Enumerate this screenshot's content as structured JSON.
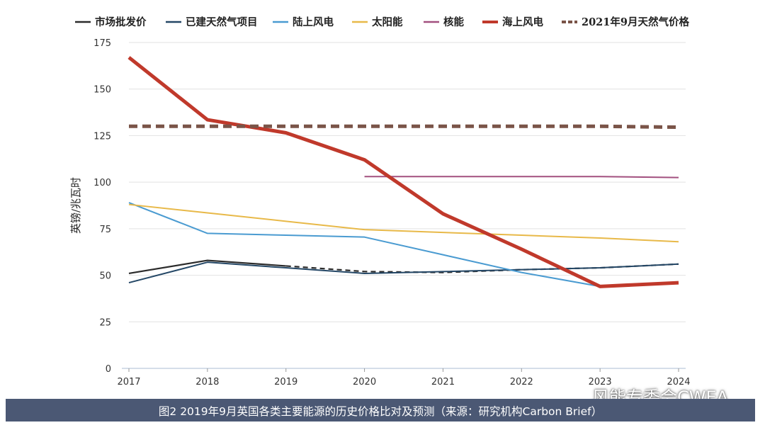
{
  "chart_data": {
    "type": "line",
    "ylabel": "英镑/兆瓦时",
    "ylim": [
      0,
      175
    ],
    "yticks": [
      0,
      25,
      50,
      75,
      100,
      125,
      150,
      175
    ],
    "x": [
      2017,
      2018,
      2019,
      2020,
      2021,
      2022,
      2023,
      2024
    ],
    "grid": "horizontal",
    "legend_position": "top",
    "series": [
      {
        "name": "市场批发价",
        "color": "#2b2b2b",
        "style": "solid",
        "width": 2.2,
        "points": [
          [
            2017,
            51
          ],
          [
            2018,
            58
          ],
          [
            2019,
            55
          ],
          [
            2020,
            52
          ],
          [
            2021,
            51.5
          ],
          [
            2022,
            53
          ],
          [
            2023,
            54
          ],
          [
            2024,
            56
          ]
        ],
        "dashed_from": 2019
      },
      {
        "name": "已建天然气项目",
        "color": "#244766",
        "style": "solid",
        "width": 2,
        "points": [
          [
            2017,
            46
          ],
          [
            2018,
            57
          ],
          [
            2019,
            54
          ],
          [
            2020,
            51
          ],
          [
            2021,
            52
          ],
          [
            2022,
            53
          ],
          [
            2023,
            54
          ],
          [
            2024,
            56
          ]
        ]
      },
      {
        "name": "陆上风电",
        "color": "#4a9bd1",
        "style": "solid",
        "width": 2,
        "points": [
          [
            2017,
            89
          ],
          [
            2018,
            72.5
          ],
          [
            2019,
            71.5
          ],
          [
            2020,
            70.5
          ],
          [
            2021,
            61
          ],
          [
            2022,
            51.5
          ],
          [
            2023,
            44
          ],
          [
            2024,
            46
          ]
        ]
      },
      {
        "name": "太阳能",
        "color": "#e8b949",
        "style": "solid",
        "width": 2,
        "points": [
          [
            2017,
            88
          ],
          [
            2018,
            83.5
          ],
          [
            2019,
            79
          ],
          [
            2020,
            74.5
          ],
          [
            2021,
            73
          ],
          [
            2022,
            71.5
          ],
          [
            2023,
            70
          ],
          [
            2024,
            68
          ]
        ]
      },
      {
        "name": "核能",
        "color": "#a2507f",
        "style": "solid",
        "width": 2,
        "points": [
          [
            2020,
            103
          ],
          [
            2021,
            103
          ],
          [
            2022,
            103
          ],
          [
            2023,
            103
          ],
          [
            2024,
            102.5
          ]
        ]
      },
      {
        "name": "海上风电",
        "color": "#c0392b",
        "style": "solid",
        "width": 5,
        "points": [
          [
            2017,
            167
          ],
          [
            2018,
            133.5
          ],
          [
            2019,
            126.5
          ],
          [
            2020,
            112
          ],
          [
            2021,
            83
          ],
          [
            2022,
            64
          ],
          [
            2023,
            44
          ],
          [
            2024,
            46
          ]
        ]
      },
      {
        "name": "2021年9月天然气价格",
        "color": "#7a5448",
        "style": "dashed",
        "width": 5,
        "points": [
          [
            2017,
            130
          ],
          [
            2018,
            130
          ],
          [
            2019,
            130
          ],
          [
            2020,
            130
          ],
          [
            2021,
            130
          ],
          [
            2022,
            130
          ],
          [
            2023,
            130
          ],
          [
            2024,
            129.5
          ]
        ]
      }
    ]
  },
  "caption": "图2 2019年9月英国各类主要能源的历史价格比对及预测（来源：研究机构Carbon Brief）",
  "watermark": "风能专委会CWEA"
}
